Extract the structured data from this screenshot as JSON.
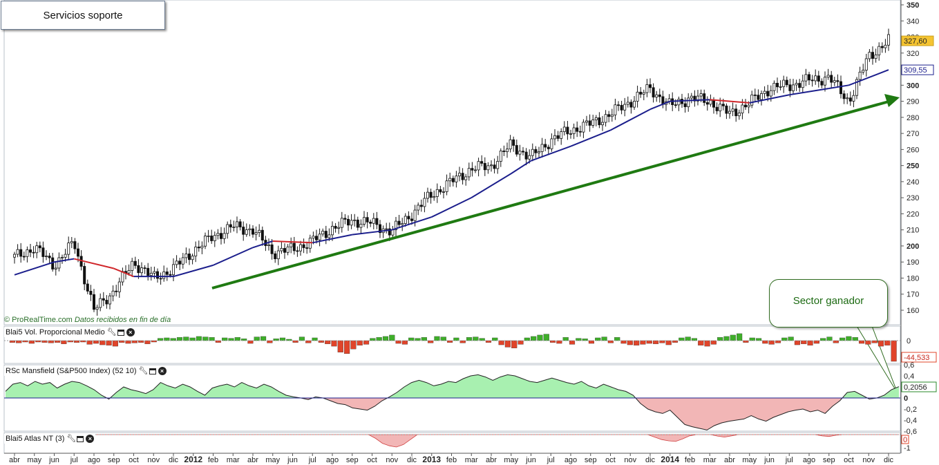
{
  "title": "Servicios soporte",
  "credit": {
    "source": "© ProRealTime.com",
    "note": "Datos recibidos en fin de día"
  },
  "callout": "Sector ganador",
  "colors": {
    "up": "#3fae2a",
    "down": "#e0442a",
    "ma_blue": "#1b1e8c",
    "ma_red": "#d0262a",
    "arrow": "#1f7a12",
    "rsc_pos_fill": "#a8f0b0",
    "rsc_neg_fill": "#f2b6b6"
  },
  "x_axis": {
    "ticks": [
      {
        "label": "abr",
        "bold": false
      },
      {
        "label": "may",
        "bold": false
      },
      {
        "label": "jun",
        "bold": false
      },
      {
        "label": "jul",
        "bold": false
      },
      {
        "label": "ago",
        "bold": false
      },
      {
        "label": "sep",
        "bold": false
      },
      {
        "label": "oct",
        "bold": false
      },
      {
        "label": "nov",
        "bold": false
      },
      {
        "label": "dic",
        "bold": false
      },
      {
        "label": "2012",
        "bold": true
      },
      {
        "label": "feb",
        "bold": false
      },
      {
        "label": "mar",
        "bold": false
      },
      {
        "label": "abr",
        "bold": false
      },
      {
        "label": "may",
        "bold": false
      },
      {
        "label": "jun",
        "bold": false
      },
      {
        "label": "jul",
        "bold": false
      },
      {
        "label": "ago",
        "bold": false
      },
      {
        "label": "sep",
        "bold": false
      },
      {
        "label": "oct",
        "bold": false
      },
      {
        "label": "nov",
        "bold": false
      },
      {
        "label": "dic",
        "bold": false
      },
      {
        "label": "2013",
        "bold": true
      },
      {
        "label": "feb",
        "bold": false
      },
      {
        "label": "mar",
        "bold": false
      },
      {
        "label": "abr",
        "bold": false
      },
      {
        "label": "may",
        "bold": false
      },
      {
        "label": "jun",
        "bold": false
      },
      {
        "label": "jul",
        "bold": false
      },
      {
        "label": "ago",
        "bold": false
      },
      {
        "label": "sep",
        "bold": false
      },
      {
        "label": "oct",
        "bold": false
      },
      {
        "label": "nov",
        "bold": false
      },
      {
        "label": "dic",
        "bold": false
      },
      {
        "label": "2014",
        "bold": true
      },
      {
        "label": "feb",
        "bold": false
      },
      {
        "label": "mar",
        "bold": false
      },
      {
        "label": "abr",
        "bold": false
      },
      {
        "label": "may",
        "bold": false
      },
      {
        "label": "jun",
        "bold": false
      },
      {
        "label": "jul",
        "bold": false
      },
      {
        "label": "ago",
        "bold": false
      },
      {
        "label": "sep",
        "bold": false
      },
      {
        "label": "oct",
        "bold": false
      },
      {
        "label": "nov",
        "bold": false
      },
      {
        "label": "dic",
        "bold": false
      }
    ]
  },
  "chart_data": [
    {
      "type": "candlestick",
      "panel": "price",
      "ylim": [
        152,
        350
      ],
      "y_ticks": [
        350,
        340,
        330,
        320,
        310,
        300,
        290,
        280,
        270,
        260,
        250,
        240,
        230,
        220,
        210,
        200,
        190,
        180,
        170,
        160
      ],
      "bold_ticks": [
        350,
        300,
        250,
        200
      ],
      "last_price_label": "327,60",
      "ma_value_label": "309,55",
      "close": [
        {
          "x": "2011-04",
          "y": 193
        },
        {
          "x": "2011-05",
          "y": 199
        },
        {
          "x": "2011-06",
          "y": 188
        },
        {
          "x": "2011-07",
          "y": 202
        },
        {
          "x": "2011-08",
          "y": 160
        },
        {
          "x": "2011-09",
          "y": 172
        },
        {
          "x": "2011-10",
          "y": 190
        },
        {
          "x": "2011-11",
          "y": 180
        },
        {
          "x": "2011-12",
          "y": 186
        },
        {
          "x": "2012-01",
          "y": 197
        },
        {
          "x": "2012-02",
          "y": 206
        },
        {
          "x": "2012-03",
          "y": 212
        },
        {
          "x": "2012-04",
          "y": 210
        },
        {
          "x": "2012-05",
          "y": 196
        },
        {
          "x": "2012-06",
          "y": 198
        },
        {
          "x": "2012-07",
          "y": 203
        },
        {
          "x": "2012-08",
          "y": 211
        },
        {
          "x": "2012-09",
          "y": 216
        },
        {
          "x": "2012-10",
          "y": 214
        },
        {
          "x": "2012-11",
          "y": 209
        },
        {
          "x": "2012-12",
          "y": 220
        },
        {
          "x": "2013-01",
          "y": 232
        },
        {
          "x": "2013-02",
          "y": 240
        },
        {
          "x": "2013-03",
          "y": 248
        },
        {
          "x": "2013-04",
          "y": 250
        },
        {
          "x": "2013-05",
          "y": 263
        },
        {
          "x": "2013-06",
          "y": 255
        },
        {
          "x": "2013-07",
          "y": 266
        },
        {
          "x": "2013-08",
          "y": 272
        },
        {
          "x": "2013-09",
          "y": 276
        },
        {
          "x": "2013-10",
          "y": 282
        },
        {
          "x": "2013-11",
          "y": 290
        },
        {
          "x": "2013-12",
          "y": 298
        },
        {
          "x": "2014-01",
          "y": 287
        },
        {
          "x": "2014-02",
          "y": 292
        },
        {
          "x": "2014-03",
          "y": 290
        },
        {
          "x": "2014-04",
          "y": 282
        },
        {
          "x": "2014-05",
          "y": 289
        },
        {
          "x": "2014-06",
          "y": 298
        },
        {
          "x": "2014-07",
          "y": 300
        },
        {
          "x": "2014-08",
          "y": 303
        },
        {
          "x": "2014-09",
          "y": 305
        },
        {
          "x": "2014-10",
          "y": 290
        },
        {
          "x": "2014-11",
          "y": 318
        },
        {
          "x": "2014-12",
          "y": 327.6
        }
      ],
      "moving_average": [
        {
          "x": "2011-04",
          "y": 182
        },
        {
          "x": "2011-06",
          "y": 190
        },
        {
          "x": "2011-07",
          "y": 192
        },
        {
          "x": "2011-09",
          "y": 186
        },
        {
          "x": "2011-10",
          "y": 181
        },
        {
          "x": "2011-12",
          "y": 181
        },
        {
          "x": "2012-02",
          "y": 188
        },
        {
          "x": "2012-04",
          "y": 199
        },
        {
          "x": "2012-05",
          "y": 203
        },
        {
          "x": "2012-07",
          "y": 202
        },
        {
          "x": "2012-09",
          "y": 207
        },
        {
          "x": "2012-11",
          "y": 210
        },
        {
          "x": "2013-01",
          "y": 218
        },
        {
          "x": "2013-03",
          "y": 230
        },
        {
          "x": "2013-05",
          "y": 245
        },
        {
          "x": "2013-06",
          "y": 253
        },
        {
          "x": "2013-08",
          "y": 262
        },
        {
          "x": "2013-10",
          "y": 272
        },
        {
          "x": "2013-12",
          "y": 285
        },
        {
          "x": "2014-01",
          "y": 290
        },
        {
          "x": "2014-03",
          "y": 291
        },
        {
          "x": "2014-05",
          "y": 289
        },
        {
          "x": "2014-07",
          "y": 294
        },
        {
          "x": "2014-09",
          "y": 298
        },
        {
          "x": "2014-10",
          "y": 300
        },
        {
          "x": "2014-12",
          "y": 309.55
        }
      ]
    },
    {
      "type": "bar",
      "panel": "volume",
      "name": "Blai5 Vol. Proporcional Medio",
      "y_ticks": [
        0
      ],
      "last_value_label": "-44,533",
      "values": [
        -4,
        -5,
        -3,
        -6,
        -3,
        -4,
        -5,
        -4,
        -7,
        -3,
        -4,
        -3,
        -8,
        -6,
        -9,
        -10,
        -12,
        -4,
        -6,
        -5,
        -4,
        -7,
        -3,
        5,
        6,
        5,
        7,
        8,
        6,
        9,
        8,
        7,
        -4,
        6,
        5,
        7,
        4,
        -6,
        8,
        9,
        -5,
        4,
        6,
        3,
        -4,
        8,
        -5,
        6,
        -4,
        -7,
        -12,
        -25,
        -28,
        -18,
        -10,
        -8,
        5,
        7,
        9,
        12,
        -6,
        -8,
        6,
        5,
        7,
        -5,
        9,
        8,
        -4,
        6,
        -5,
        7,
        8,
        5,
        -4,
        6,
        -9,
        -14,
        -16,
        -8,
        6,
        9,
        12,
        14,
        -4,
        -6,
        7,
        -8,
        5,
        4,
        -6,
        6,
        8,
        -5,
        7,
        -6,
        -9,
        -10,
        -8,
        -6,
        -7,
        -5,
        -9,
        -4,
        6,
        8,
        5,
        -10,
        -12,
        -8,
        7,
        9,
        12,
        15,
        -4,
        6,
        5,
        -6,
        -8,
        -5,
        6,
        8,
        -9,
        -7,
        -10,
        -6,
        5,
        8,
        -5,
        6,
        9,
        7,
        -6,
        -8,
        -5,
        -12,
        -10,
        -44.5
      ]
    },
    {
      "type": "area",
      "panel": "rsc",
      "name": "RSc Mansfield (S&P500 Index) (52 10)",
      "y_ticks": [
        0.6,
        0.4,
        0.2,
        0,
        -0.2,
        -0.4,
        -0.6
      ],
      "tick_labels": [
        "0,6",
        "0,4",
        "0,2056",
        "0",
        "-0,2",
        "-0,4",
        "-0,6"
      ],
      "last_value": 0.2056,
      "values": [
        0.12,
        0.25,
        0.28,
        0.22,
        0.3,
        0.25,
        0.28,
        0.18,
        0.25,
        0.3,
        0.28,
        0.22,
        0.15,
        0.05,
        -0.02,
        0.1,
        0.2,
        0.15,
        0.12,
        0.08,
        0.15,
        0.28,
        0.22,
        0.18,
        0.25,
        0.2,
        0.12,
        0.05,
        0.18,
        0.22,
        0.25,
        0.2,
        0.28,
        0.22,
        0.18,
        0.25,
        0.2,
        0.12,
        0.05,
        0.02,
        0.0,
        -0.03,
        0.02,
        0.0,
        -0.05,
        -0.1,
        -0.12,
        -0.18,
        -0.2,
        -0.22,
        -0.15,
        -0.05,
        0.02,
        0.1,
        0.2,
        0.28,
        0.32,
        0.28,
        0.22,
        0.25,
        0.3,
        0.28,
        0.35,
        0.4,
        0.42,
        0.38,
        0.32,
        0.38,
        0.42,
        0.4,
        0.35,
        0.3,
        0.28,
        0.32,
        0.36,
        0.32,
        0.28,
        0.25,
        0.3,
        0.22,
        0.18,
        0.25,
        0.2,
        0.15,
        0.12,
        0.05,
        -0.1,
        -0.2,
        -0.25,
        -0.28,
        -0.22,
        -0.35,
        -0.48,
        -0.52,
        -0.55,
        -0.58,
        -0.5,
        -0.45,
        -0.42,
        -0.4,
        -0.38,
        -0.32,
        -0.38,
        -0.42,
        -0.35,
        -0.3,
        -0.25,
        -0.22,
        -0.2,
        -0.25,
        -0.22,
        -0.28,
        -0.15,
        -0.05,
        0.1,
        0.12,
        0.05,
        -0.02,
        0.0,
        0.05,
        0.15,
        0.2056
      ]
    },
    {
      "type": "area",
      "panel": "atlas",
      "name": "Blai5 Atlas NT (3)",
      "y_ticks": [
        0,
        -1
      ],
      "tick_labels": [
        "0",
        "-1"
      ],
      "last_value_label": "0",
      "values": [
        0,
        0,
        0,
        0,
        0,
        0,
        0,
        0,
        0,
        0,
        0,
        0,
        0,
        0,
        0,
        0,
        0,
        0,
        0,
        0,
        0,
        0,
        0,
        0,
        0,
        0,
        0,
        0,
        0,
        0,
        0,
        0,
        0,
        0,
        0,
        0,
        0,
        0,
        0,
        0,
        0,
        0,
        0,
        0,
        0,
        0,
        0,
        0,
        0,
        0,
        0,
        0,
        0,
        -0.3,
        -0.7,
        -0.9,
        -1.0,
        -0.8,
        -0.4,
        0,
        0,
        0,
        0,
        0,
        0,
        0,
        0,
        0,
        0,
        0,
        0,
        0,
        0,
        0,
        0,
        0,
        0,
        0,
        0,
        0,
        0,
        0,
        0,
        0,
        0,
        0,
        0,
        0,
        0,
        0,
        0,
        0,
        0,
        -0.2,
        -0.4,
        -0.5,
        -0.55,
        -0.35,
        -0.1,
        0,
        0,
        0,
        -0.12,
        -0.2,
        -0.1,
        0,
        0,
        0,
        0,
        0,
        0,
        0,
        0,
        0,
        0,
        0,
        0,
        -0.1,
        -0.15,
        -0.05,
        0,
        0,
        0,
        0,
        0,
        0,
        0,
        0,
        0
      ]
    }
  ]
}
